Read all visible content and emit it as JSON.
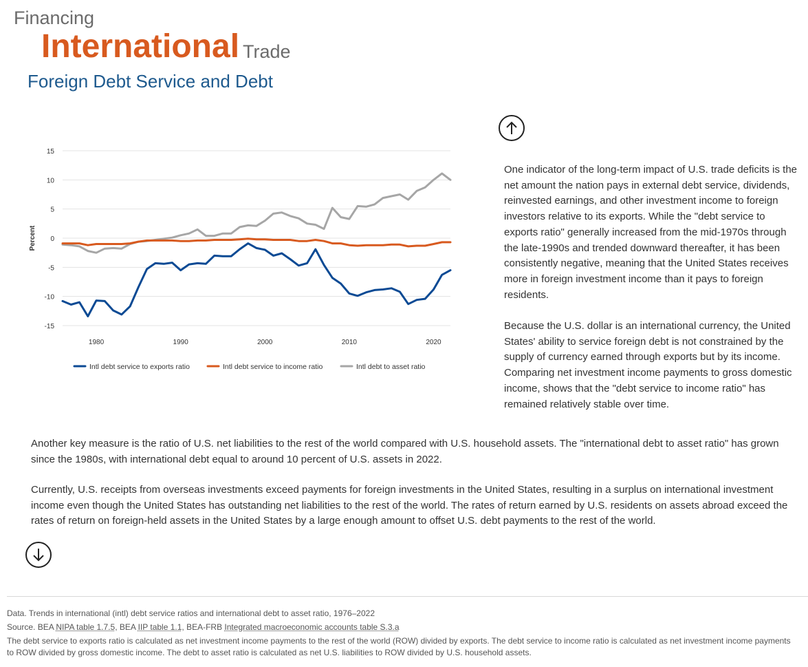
{
  "header": {
    "kicker": "Financing",
    "title_main": "International",
    "title_tail": "Trade",
    "subtitle": "Foreign Debt Service and Debt"
  },
  "nav": {
    "up_icon": "arrow-up-icon",
    "down_icon": "arrow-down-icon"
  },
  "colors": {
    "accent": "#d85a1f",
    "subtitle": "#1e5a8e",
    "series_exports": "#0b4a94",
    "series_income": "#d85a1f",
    "series_asset": "#a6a6a6"
  },
  "chart_data": {
    "type": "line",
    "title": "",
    "xlabel": "",
    "ylabel": "Percent",
    "xlim": [
      1976,
      2022
    ],
    "ylim": [
      -15,
      15
    ],
    "yticks": [
      15,
      10,
      5,
      0,
      -5,
      -10,
      -15
    ],
    "xticks": [
      1980,
      1990,
      2000,
      2010,
      2020
    ],
    "grid": "horizontal",
    "legend_position": "bottom",
    "x": [
      1976,
      1977,
      1978,
      1979,
      1980,
      1981,
      1982,
      1983,
      1984,
      1985,
      1986,
      1987,
      1988,
      1989,
      1990,
      1991,
      1992,
      1993,
      1994,
      1995,
      1996,
      1997,
      1998,
      1999,
      2000,
      2001,
      2002,
      2003,
      2004,
      2005,
      2006,
      2007,
      2008,
      2009,
      2010,
      2011,
      2012,
      2013,
      2014,
      2015,
      2016,
      2017,
      2018,
      2019,
      2020,
      2021,
      2022
    ],
    "series": [
      {
        "name": "Intl debt service to exports ratio",
        "color": "#0b4a94",
        "values": [
          -10.8,
          -11.4,
          -11.0,
          -13.4,
          -10.7,
          -10.8,
          -12.4,
          -13.1,
          -11.7,
          -8.4,
          -5.3,
          -4.3,
          -4.4,
          -4.2,
          -5.5,
          -4.5,
          -4.3,
          -4.4,
          -3.0,
          -3.1,
          -3.1,
          -1.9,
          -0.9,
          -1.7,
          -2.0,
          -3.0,
          -2.6,
          -3.6,
          -4.7,
          -4.3,
          -1.9,
          -4.6,
          -6.8,
          -7.8,
          -9.5,
          -9.9,
          -9.3,
          -8.9,
          -8.8,
          -8.6,
          -9.2,
          -11.3,
          -10.6,
          -10.4,
          -8.8,
          -6.3,
          -5.5
        ]
      },
      {
        "name": "Intl debt service to income ratio",
        "color": "#d85a1f",
        "values": [
          -0.9,
          -0.9,
          -0.9,
          -1.2,
          -1.0,
          -1.0,
          -1.0,
          -1.0,
          -0.9,
          -0.6,
          -0.4,
          -0.4,
          -0.4,
          -0.4,
          -0.5,
          -0.5,
          -0.4,
          -0.4,
          -0.3,
          -0.3,
          -0.3,
          -0.2,
          -0.1,
          -0.2,
          -0.2,
          -0.3,
          -0.3,
          -0.3,
          -0.5,
          -0.5,
          -0.3,
          -0.5,
          -0.9,
          -0.9,
          -1.2,
          -1.3,
          -1.2,
          -1.2,
          -1.2,
          -1.1,
          -1.1,
          -1.4,
          -1.3,
          -1.3,
          -1.0,
          -0.7,
          -0.7
        ]
      },
      {
        "name": "Intl debt to asset ratio",
        "color": "#a6a6a6",
        "values": [
          -1.1,
          -1.2,
          -1.4,
          -2.2,
          -2.5,
          -1.8,
          -1.7,
          -1.8,
          -1.0,
          -0.6,
          -0.5,
          -0.3,
          -0.1,
          0.1,
          0.5,
          0.8,
          1.5,
          0.4,
          0.4,
          0.8,
          0.8,
          1.9,
          2.2,
          2.1,
          3.0,
          4.2,
          4.4,
          3.8,
          3.4,
          2.5,
          2.3,
          1.6,
          5.2,
          3.6,
          3.3,
          5.5,
          5.4,
          5.8,
          6.9,
          7.2,
          7.5,
          6.6,
          8.1,
          8.7,
          10.0,
          11.1,
          10.0
        ]
      }
    ]
  },
  "text": {
    "para1": "One indicator of the long-term impact of U.S. trade deficits is the net amount the nation pays in external debt service, dividends, reinvested earnings, and other investment income to foreign investors relative to its exports. While the \"debt service to exports ratio\" generally increased from the mid-1970s through the late-1990s and trended downward thereafter, it has been consistently negative, meaning that the United States receives more in foreign investment income than it pays to foreign residents.",
    "para2": "Because the U.S. dollar is an international currency, the United States' ability to service foreign debt is not constrained by the supply of currency earned through exports but by its income. Comparing net investment income payments to gross domestic income, shows that the \"debt service to income ratio\" has remained relatively stable over time.",
    "para3": "Another key measure is the ratio of U.S. net liabilities to the rest of the world compared with U.S. household assets. The \"international debt to asset ratio\" has grown since the 1980s, with international debt equal to around 10 percent of U.S. assets in 2022.",
    "para4": "Currently, U.S. receipts from overseas investments exceed payments for foreign investments in the United States, resulting in a surplus on international investment income even though the United States has outstanding net liabilities to the rest of the world. The rates of return earned by U.S. residents on assets abroad exceed the rates of return on foreign-held assets in the United States by a large enough amount to offset U.S. debt payments to the rest of the world."
  },
  "footer": {
    "data_line": "Data. Trends in international (intl) debt service ratios and international debt to asset ratio, 1976–2022",
    "source_prefix": "Source. BEA ",
    "source_link1": "NIPA table 1.7.5",
    "source_mid1": ", BEA ",
    "source_link2": "IIP table 1.1",
    "source_mid2": ", BEA-FRB ",
    "source_link3": "Integrated macroeconomic accounts table S.3.a",
    "note": "The debt service to exports ratio is calculated as net investment income payments to the rest of the world (ROW) divided by exports. The debt service to income ratio is calculated as net investment income payments to ROW divided by gross domestic income. The debt to asset ratio is calculated as net U.S. liabilities to ROW divided by U.S. household assets."
  }
}
